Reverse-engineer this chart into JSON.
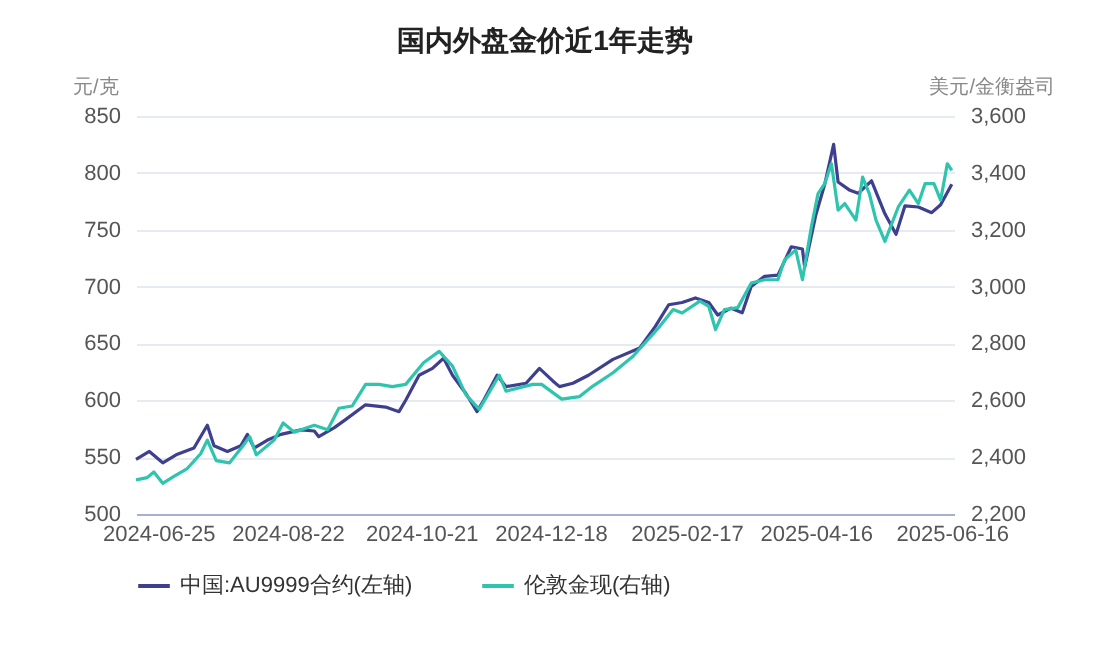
{
  "chart_data": {
    "type": "line",
    "title": "国内外盘金价近1年走势",
    "ylabel": "元/克",
    "y2label": "美元/金衡盎司",
    "xlim": [
      "2024-06-15",
      "2025-06-17"
    ],
    "xticks": [
      "2024-06-25",
      "2024-08-22",
      "2024-10-21",
      "2024-12-18",
      "2025-02-17",
      "2025-04-16",
      "2025-06-16"
    ],
    "ylim": [
      500,
      850
    ],
    "yticks": [
      500,
      550,
      600,
      650,
      700,
      750,
      800,
      850
    ],
    "y2lim": [
      2200,
      3600
    ],
    "y2ticks": [
      {
        "value": 2200,
        "label": "2,200"
      },
      {
        "value": 2400,
        "label": "2,400"
      },
      {
        "value": 2600,
        "label": "2,600"
      },
      {
        "value": 2800,
        "label": "2,800"
      },
      {
        "value": 3000,
        "label": "3,000"
      },
      {
        "value": 3200,
        "label": "3,200"
      },
      {
        "value": 3400,
        "label": "3,400"
      },
      {
        "value": 3600,
        "label": "3,600"
      }
    ],
    "grid": "y",
    "legend": "bottom",
    "series": [
      {
        "name": "中国:AU9999合约(左轴)",
        "color": "#3f3f8f",
        "x": [
          "2024-06-15",
          "2024-06-21",
          "2024-06-27",
          "2024-07-03",
          "2024-07-11",
          "2024-07-17",
          "2024-07-20",
          "2024-07-26",
          "2024-08-01",
          "2024-08-04",
          "2024-08-07",
          "2024-08-13",
          "2024-08-19",
          "2024-08-28",
          "2024-09-03",
          "2024-09-05",
          "2024-09-12",
          "2024-09-17",
          "2024-09-26",
          "2024-10-05",
          "2024-10-11",
          "2024-10-14",
          "2024-10-20",
          "2024-10-26",
          "2024-10-31",
          "2024-11-04",
          "2024-11-10",
          "2024-11-15",
          "2024-11-18",
          "2024-11-24",
          "2024-11-28",
          "2024-12-07",
          "2024-12-13",
          "2024-12-19",
          "2024-12-22",
          "2024-12-28",
          "2025-01-04",
          "2025-01-15",
          "2025-01-27",
          "2025-02-03",
          "2025-02-09",
          "2025-02-15",
          "2025-02-21",
          "2025-02-27",
          "2025-03-03",
          "2025-03-09",
          "2025-03-14",
          "2025-03-18",
          "2025-03-24",
          "2025-03-30",
          "2025-04-05",
          "2025-04-10",
          "2025-04-11",
          "2025-04-16",
          "2025-04-20",
          "2025-04-24",
          "2025-04-26",
          "2025-05-01",
          "2025-05-05",
          "2025-05-11",
          "2025-05-17",
          "2025-05-22",
          "2025-05-26",
          "2025-06-01",
          "2025-06-07",
          "2025-06-11",
          "2025-06-16"
        ],
        "values": [
          548,
          555,
          545,
          552,
          558,
          578,
          560,
          555,
          560,
          570,
          558,
          565,
          570,
          574,
          573,
          568,
          576,
          583,
          596,
          594,
          590,
          600,
          622,
          628,
          637,
          622,
          606,
          590,
          600,
          622,
          612,
          615,
          628,
          617,
          612,
          615,
          622,
          636,
          646,
          665,
          684,
          686,
          690,
          686,
          675,
          681,
          677,
          700,
          709,
          710,
          735,
          733,
          717,
          763,
          790,
          825,
          792,
          785,
          782,
          793,
          764,
          746,
          771,
          770,
          765,
          772,
          790
        ]
      },
      {
        "name": "伦敦金现(右轴)",
        "color": "#2ec4ad",
        "axis": "y2",
        "x": [
          "2024-06-15",
          "2024-06-20",
          "2024-06-23",
          "2024-06-27",
          "2024-07-02",
          "2024-07-08",
          "2024-07-14",
          "2024-07-17",
          "2024-07-21",
          "2024-07-27",
          "2024-08-02",
          "2024-08-05",
          "2024-08-08",
          "2024-08-16",
          "2024-08-20",
          "2024-08-25",
          "2024-09-03",
          "2024-09-09",
          "2024-09-14",
          "2024-09-20",
          "2024-09-26",
          "2024-10-02",
          "2024-10-08",
          "2024-10-14",
          "2024-10-22",
          "2024-10-29",
          "2024-11-04",
          "2024-11-10",
          "2024-11-16",
          "2024-11-25",
          "2024-11-28",
          "2024-12-10",
          "2024-12-14",
          "2024-12-23",
          "2024-12-31",
          "2025-01-06",
          "2025-01-15",
          "2025-01-24",
          "2025-02-05",
          "2025-02-11",
          "2025-02-15",
          "2025-02-23",
          "2025-02-27",
          "2025-03-02",
          "2025-03-06",
          "2025-03-12",
          "2025-03-18",
          "2025-03-24",
          "2025-03-30",
          "2025-04-02",
          "2025-04-07",
          "2025-04-10",
          "2025-04-14",
          "2025-04-17",
          "2025-04-20",
          "2025-04-23",
          "2025-04-26",
          "2025-04-29",
          "2025-05-04",
          "2025-05-07",
          "2025-05-10",
          "2025-05-13",
          "2025-05-17",
          "2025-05-23",
          "2025-05-28",
          "2025-06-01",
          "2025-06-04",
          "2025-06-08",
          "2025-06-11",
          "2025-06-14",
          "2025-06-16"
        ],
        "values": [
          2320,
          2328,
          2348,
          2308,
          2332,
          2360,
          2412,
          2460,
          2388,
          2380,
          2440,
          2472,
          2408,
          2460,
          2520,
          2488,
          2512,
          2496,
          2572,
          2580,
          2656,
          2656,
          2648,
          2656,
          2732,
          2772,
          2720,
          2620,
          2568,
          2688,
          2632,
          2656,
          2656,
          2604,
          2613,
          2650,
          2697,
          2755,
          2860,
          2919,
          2907,
          2949,
          2930,
          2849,
          2919,
          2926,
          3012,
          3024,
          3024,
          3094,
          3129,
          3024,
          3210,
          3327,
          3362,
          3432,
          3269,
          3292,
          3234,
          3385,
          3327,
          3234,
          3159,
          3280,
          3339,
          3292,
          3362,
          3362,
          3304,
          3432,
          3409
        ]
      }
    ]
  }
}
